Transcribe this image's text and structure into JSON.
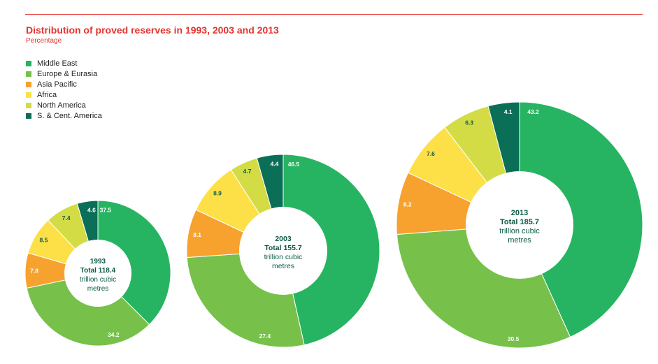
{
  "title": "Distribution of proved reserves in 1993, 2003 and 2013",
  "subtitle": "Percentage",
  "colors": {
    "accent": "#e3342f",
    "Middle East": "#27b462",
    "Europe & Eurasia": "#77c14b",
    "Asia Pacific": "#f7a12e",
    "Africa": "#fde047",
    "North America": "#d3dc45",
    "S. & Cent. America": "#0b6e57"
  },
  "legend": [
    {
      "name": "Middle East",
      "color": "#27b462"
    },
    {
      "name": "Europe & Eurasia",
      "color": "#77c14b"
    },
    {
      "name": "Asia Pacific",
      "color": "#f7a12e"
    },
    {
      "name": "Africa",
      "color": "#fde047"
    },
    {
      "name": "North America",
      "color": "#d3dc45"
    },
    {
      "name": "S. & Cent. America",
      "color": "#0b6e57"
    }
  ],
  "chart_data": {
    "type": "pie",
    "variant": "donut",
    "title": "Distribution of proved reserves in 1993, 2003 and 2013",
    "subtitle": "Percentage",
    "categories": [
      "Middle East",
      "Europe & Eurasia",
      "Asia Pacific",
      "Africa",
      "North America",
      "S. & Cent. America"
    ],
    "charts": [
      {
        "year": "1993",
        "total_label": "Total 118.4",
        "unit_line1": "trillion cubic",
        "unit_line2": "metres",
        "total": 118.4,
        "values": [
          37.5,
          34.2,
          7.8,
          8.5,
          7.4,
          4.6
        ]
      },
      {
        "year": "2003",
        "total_label": "Total 155.7",
        "unit_line1": "trillion cubic",
        "unit_line2": "metres",
        "total": 155.7,
        "values": [
          46.5,
          27.4,
          8.1,
          8.9,
          4.7,
          4.4
        ]
      },
      {
        "year": "2013",
        "total_label": "Total 185.7",
        "unit_line1": "trillion cubic",
        "unit_line2": "metres",
        "total": 185.7,
        "values": [
          43.2,
          30.5,
          8.2,
          7.6,
          6.3,
          4.1
        ]
      }
    ]
  }
}
